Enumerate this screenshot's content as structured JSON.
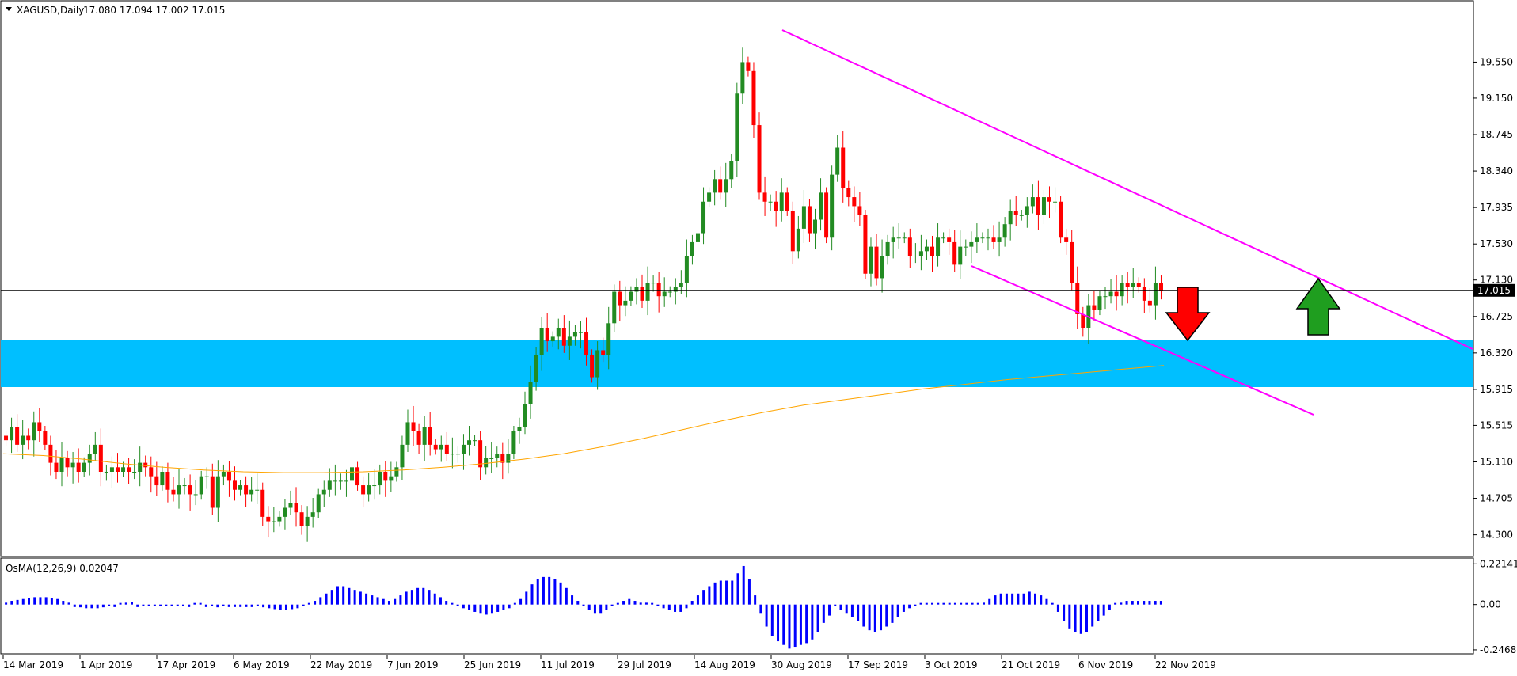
{
  "main_chart": {
    "title": "XAGUSD,Daily",
    "ohlc_text": "17.080 17.094 17.002 17.015",
    "current_price_label": "17.015",
    "y_ticks": [
      "19.550",
      "19.150",
      "18.745",
      "18.340",
      "17.935",
      "17.530",
      "17.130",
      "16.725",
      "16.320",
      "15.915",
      "15.515",
      "15.110",
      "14.705",
      "14.300"
    ]
  },
  "indicator": {
    "title": "OsMA(12,26,9) 0.02047",
    "y_ticks": [
      "0.22141",
      "0.00",
      "-0.24682"
    ]
  },
  "x_ticks": [
    "14 Mar 2019",
    "1 Apr 2019",
    "17 Apr 2019",
    "6 May 2019",
    "22 May 2019",
    "7 Jun 2019",
    "25 Jun 2019",
    "11 Jul 2019",
    "29 Jul 2019",
    "14 Aug 2019",
    "30 Aug 2019",
    "17 Sep 2019",
    "3 Oct 2019",
    "21 Oct 2019",
    "6 Nov 2019",
    "22 Nov 2019"
  ],
  "colors": {
    "bull": "#228b22",
    "bear": "#ff0000",
    "ma": "#ffa500",
    "trendline": "#ff00ff",
    "support_zone": "#00bfff",
    "osma": "#0000ff",
    "arrow_down": "#ff0000",
    "arrow_up": "#1f9e1f"
  },
  "chart_data": [
    {
      "type": "candlestick",
      "title": "XAGUSD,Daily",
      "ylim": [
        14.2,
        19.8
      ],
      "price_line": 17.015,
      "close": [
        15.35,
        15.5,
        15.3,
        15.4,
        15.35,
        15.55,
        15.45,
        15.3,
        15.1,
        15.0,
        15.15,
        15.05,
        15.1,
        15.0,
        15.1,
        15.2,
        15.3,
        15.0,
        15.0,
        15.05,
        15.0,
        15.05,
        15.0,
        15.0,
        15.1,
        15.05,
        14.95,
        14.85,
        15.0,
        14.8,
        14.75,
        14.85,
        14.85,
        14.75,
        14.75,
        14.95,
        14.95,
        14.6,
        14.95,
        15.0,
        14.9,
        14.8,
        14.85,
        14.75,
        14.8,
        14.8,
        14.5,
        14.45,
        14.45,
        14.5,
        14.6,
        14.65,
        14.55,
        14.4,
        14.5,
        14.55,
        14.75,
        14.8,
        14.9,
        14.9,
        14.9,
        14.9,
        15.05,
        14.85,
        14.75,
        14.85,
        14.85,
        15.0,
        14.9,
        14.95,
        15.05,
        15.3,
        15.55,
        15.45,
        15.3,
        15.5,
        15.3,
        15.25,
        15.3,
        15.2,
        15.2,
        15.2,
        15.3,
        15.35,
        15.35,
        15.05,
        15.15,
        15.15,
        15.2,
        15.1,
        15.2,
        15.45,
        15.5,
        15.75,
        16.0,
        16.3,
        16.6,
        16.45,
        16.5,
        16.6,
        16.4,
        16.5,
        16.55,
        16.55,
        16.3,
        16.05,
        16.35,
        16.3,
        16.65,
        17.0,
        16.85,
        16.9,
        17.0,
        17.05,
        16.9,
        17.1,
        17.1,
        16.95,
        17.0,
        17.0,
        17.05,
        17.1,
        17.4,
        17.55,
        17.65,
        18.0,
        18.1,
        18.25,
        18.1,
        18.25,
        18.45,
        19.2,
        19.55,
        19.45,
        18.85,
        18.1,
        18.0,
        18.0,
        17.9,
        18.1,
        17.9,
        17.45,
        17.7,
        17.95,
        17.65,
        17.8,
        18.1,
        17.6,
        18.3,
        18.6,
        18.15,
        18.05,
        17.95,
        17.85,
        17.2,
        17.5,
        17.15,
        17.4,
        17.55,
        17.6,
        17.6,
        17.6,
        17.4,
        17.4,
        17.45,
        17.5,
        17.4,
        17.6,
        17.6,
        17.55,
        17.3,
        17.5,
        17.5,
        17.55,
        17.6,
        17.6,
        17.6,
        17.55,
        17.6,
        17.75,
        17.9,
        17.85,
        17.85,
        17.95,
        18.05,
        17.85,
        18.05,
        18.0,
        18.0,
        17.6,
        17.55,
        17.1,
        16.75,
        16.6,
        16.85,
        16.8,
        16.95,
        16.95,
        17.0,
        16.95,
        17.1,
        17.05,
        17.1,
        17.05,
        16.9,
        16.85,
        17.1,
        17.015
      ]
    },
    {
      "type": "line",
      "name": "moving average",
      "y": [
        15.2,
        15.18,
        15.14,
        15.09,
        15.05,
        15.02,
        15.0,
        14.99,
        14.99,
        15.0,
        15.02,
        15.05,
        15.09,
        15.14,
        15.2,
        15.28,
        15.37,
        15.47,
        15.57,
        15.66,
        15.74,
        15.8,
        15.86,
        15.92,
        15.97,
        16.02,
        16.06,
        16.1,
        16.14,
        16.18
      ]
    },
    {
      "type": "bar",
      "name": "OsMA(12,26,9)",
      "ylim": [
        -0.26,
        0.24
      ],
      "values": [
        0.01,
        0.02,
        0.025,
        0.03,
        0.035,
        0.04,
        0.04,
        0.04,
        0.035,
        0.03,
        0.02,
        0.01,
        -0.005,
        -0.015,
        -0.02,
        -0.02,
        -0.02,
        -0.015,
        -0.01,
        -0.005,
        0.0,
        0.01,
        0.005,
        -0.005,
        -0.01,
        -0.01,
        -0.01,
        -0.01,
        -0.01,
        -0.01,
        -0.01,
        -0.01,
        -0.005,
        0.0,
        0.0,
        -0.005,
        -0.01,
        -0.015,
        -0.01,
        -0.005,
        -0.005,
        -0.005,
        -0.005,
        -0.005,
        -0.01,
        -0.015,
        -0.02,
        -0.025,
        -0.03,
        -0.03,
        -0.025,
        -0.02,
        -0.01,
        0.0,
        0.02,
        0.04,
        0.06,
        0.08,
        0.1,
        0.1,
        0.09,
        0.08,
        0.07,
        0.06,
        0.05,
        0.04,
        0.03,
        0.02,
        0.03,
        0.05,
        0.07,
        0.08,
        0.09,
        0.09,
        0.08,
        0.06,
        0.04,
        0.02,
        0.0,
        -0.01,
        -0.02,
        -0.03,
        -0.04,
        -0.05,
        -0.055,
        -0.05,
        -0.04,
        -0.03,
        -0.02,
        0.0,
        0.03,
        0.07,
        0.11,
        0.14,
        0.15,
        0.15,
        0.14,
        0.12,
        0.09,
        0.05,
        0.02,
        -0.01,
        -0.03,
        -0.05,
        -0.05,
        -0.03,
        -0.01,
        0.0,
        0.02,
        0.03,
        0.02,
        0.01,
        0.01,
        0.0,
        -0.01,
        -0.02,
        -0.03,
        -0.04,
        -0.04,
        -0.02,
        0.02,
        0.05,
        0.08,
        0.1,
        0.12,
        0.13,
        0.13,
        0.13,
        0.17,
        0.21,
        0.14,
        0.05,
        -0.05,
        -0.12,
        -0.17,
        -0.2,
        -0.22,
        -0.24,
        -0.23,
        -0.22,
        -0.21,
        -0.19,
        -0.15,
        -0.1,
        -0.06,
        -0.01,
        -0.03,
        -0.05,
        -0.07,
        -0.09,
        -0.12,
        -0.14,
        -0.15,
        -0.14,
        -0.12,
        -0.1,
        -0.07,
        -0.04,
        -0.02,
        -0.01,
        0.0,
        0.0,
        0.0,
        0.0,
        0.0,
        0.0,
        0.0,
        0.0,
        0.0,
        0.0,
        0.0,
        0.01,
        0.03,
        0.05,
        0.06,
        0.06,
        0.06,
        0.06,
        0.06,
        0.07,
        0.06,
        0.05,
        0.03,
        0.0,
        -0.04,
        -0.09,
        -0.13,
        -0.15,
        -0.16,
        -0.15,
        -0.12,
        -0.09,
        -0.06,
        -0.03,
        0.0,
        0.01,
        0.02,
        0.02,
        0.02,
        0.02,
        0.02,
        0.02,
        0.02
      ]
    }
  ]
}
